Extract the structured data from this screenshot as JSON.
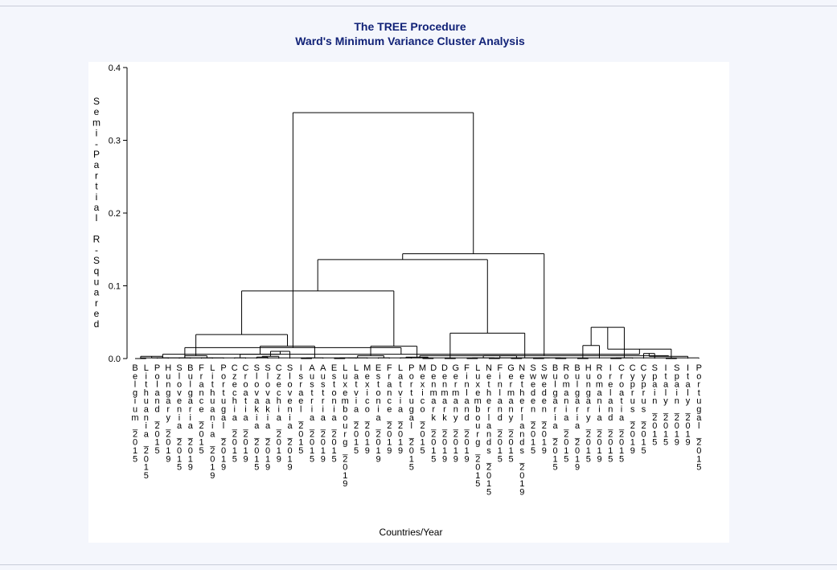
{
  "chart_data": {
    "type": "dendrogram",
    "title": "The TREE Procedure",
    "subtitle": "Ward's Minimum Variance Cluster Analysis",
    "xlabel": "Countries/Year",
    "ylabel": "Semi-Partial R-Squared",
    "ylim": [
      0,
      0.4
    ],
    "yticks": [
      "0.0",
      "0.1",
      "0.2",
      "0.3",
      "0.4"
    ],
    "leaves": [
      "Belgium_2015",
      "Lithuania_2015",
      "Poland_2015",
      "Hungary_2019",
      "Slovenia_2015",
      "Bulgaria_2019",
      "France_2015",
      "Lithuania_2019",
      "Portugal_2019",
      "Czechia_2015",
      "Croatia_2019",
      "Slovakia_2015",
      "Slovakia_2019",
      "Czechia_2019",
      "Slovenia_2019",
      "Israel_2015",
      "Austria_2015",
      "Austria_2019",
      "Estonia_2015",
      "Luxembourg_2019",
      "Latvia_2015",
      "Mexico_2019",
      "Estonia_2019",
      "France_2019",
      "Latvia_2019",
      "Portugal_2015",
      "Mexico_2015",
      "Denmark_2015",
      "Denmark_2019",
      "Germany_2019",
      "Finland_2019",
      "Luxembourg_2015",
      "Netherlands_2015",
      "Finland_2015",
      "Germany_2015",
      "Netherlands_2019",
      "Sweden_2015",
      "Sweden_2019",
      "Bulgaria_2015",
      "Romania_2015",
      "Bulgaria_2019",
      "Hungary_2015",
      "Romania_2019",
      "Ireland_2015",
      "Croatia_2015",
      "Cyprus_2019",
      "Cyprus_2015",
      "Spain_2015",
      "Italy_2015",
      "Spain_2019",
      "Italy_2019",
      "Portugal_2015"
    ],
    "merges": [
      {
        "a": 0,
        "b": 1,
        "height": 0.0
      },
      {
        "a": 2,
        "b": 3,
        "height": 0.001
      },
      {
        "a": 4,
        "b": 5,
        "height": 0.001
      },
      {
        "a": 6,
        "b": 7,
        "height": 0.001
      },
      {
        "a": 52,
        "b": 53,
        "height": 0.003
      },
      {
        "a": 54,
        "b": 55,
        "height": 0.004
      },
      {
        "a": 56,
        "b": 8,
        "height": 0.001
      },
      {
        "a": 9,
        "b": 10,
        "height": 0.001
      },
      {
        "a": 11,
        "b": 12,
        "height": 0.002
      },
      {
        "a": 60,
        "b": 13,
        "height": 0.003
      },
      {
        "a": 61,
        "b": 14,
        "height": 0.01
      },
      {
        "a": 59,
        "b": 62,
        "height": 0.006
      },
      {
        "a": 15,
        "b": 16,
        "height": 0.0
      },
      {
        "a": 64,
        "b": 17,
        "height": 0.001
      },
      {
        "a": 63,
        "b": 65,
        "height": 0.017
      },
      {
        "a": 57,
        "b": 66,
        "height": 0.033
      },
      {
        "a": 18,
        "b": 19,
        "height": 0.0
      },
      {
        "a": 68,
        "b": 20,
        "height": 0.001
      },
      {
        "a": 69,
        "b": 21,
        "height": 0.001
      },
      {
        "a": 22,
        "b": 23,
        "height": 0.001
      },
      {
        "a": 70,
        "b": 71,
        "height": 0.004
      },
      {
        "a": 24,
        "b": 25,
        "height": 0.001
      },
      {
        "a": 26,
        "b": 27,
        "height": 0.0
      },
      {
        "a": 73,
        "b": 74,
        "height": 0.002
      },
      {
        "a": 72,
        "b": 75,
        "height": 0.017
      },
      {
        "a": 67,
        "b": 76,
        "height": 0.093
      },
      {
        "a": 28,
        "b": 29,
        "height": 0.0
      },
      {
        "a": 30,
        "b": 31,
        "height": 0.0
      },
      {
        "a": 32,
        "b": 33,
        "height": 0.0
      },
      {
        "a": 79,
        "b": 80,
        "height": 0.001
      },
      {
        "a": 34,
        "b": 35,
        "height": 0.0
      },
      {
        "a": 81,
        "b": 82,
        "height": 0.004
      },
      {
        "a": 36,
        "b": 37,
        "height": 0.0
      },
      {
        "a": 38,
        "b": 39,
        "height": 0.0
      },
      {
        "a": 84,
        "b": 85,
        "height": 0.001
      },
      {
        "a": 83,
        "b": 86,
        "height": 0.001
      },
      {
        "a": 78,
        "b": 87,
        "height": 0.035
      },
      {
        "a": 77,
        "b": 88,
        "height": 0.136
      },
      {
        "a": 40,
        "b": 41,
        "height": 0.0
      },
      {
        "a": 90,
        "b": 42,
        "height": 0.018
      },
      {
        "a": 43,
        "b": 44,
        "height": 0.0
      },
      {
        "a": 92,
        "b": 45,
        "height": 0.001
      },
      {
        "a": 91,
        "b": 93,
        "height": 0.043
      },
      {
        "a": 46,
        "b": 47,
        "height": 0.007
      },
      {
        "a": 48,
        "b": 49,
        "height": 0.0
      },
      {
        "a": 95,
        "b": 50,
        "height": 0.003
      },
      {
        "a": 94,
        "b": 96,
        "height": 0.013
      },
      {
        "a": 51,
        "b": 52,
        "height": 0.001
      },
      {
        "a": 98,
        "b": 53,
        "height": 0.006
      },
      {
        "a": 97,
        "b": 99,
        "height": 0.004
      },
      {
        "a": 100,
        "b": 54,
        "height": 0.015
      },
      {
        "a": 89,
        "b": 101,
        "height": 0.144
      },
      {
        "a": 102,
        "b": 103,
        "height": 0.338
      }
    ]
  }
}
